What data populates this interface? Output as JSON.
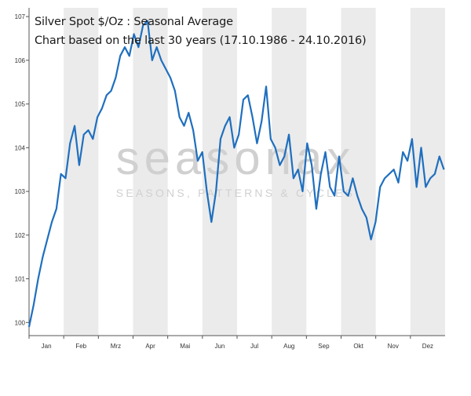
{
  "colors": {
    "line": "#1f6fbf",
    "band": "#ebebeb",
    "axis": "#555555",
    "watermark": "#d0d0d0"
  },
  "watermark": {
    "brand": "seasonax",
    "tagline": "SEASONS, PATTERNS & CYCLES"
  },
  "chart_data": {
    "type": "line",
    "title": "Silver Spot  $/Oz : Seasonal Average",
    "subtitle": "Chart based on the last 30 years (17.10.1986 - 24.10.2016)",
    "xlabel": "",
    "ylabel": "",
    "ylim": [
      99.7,
      107.2
    ],
    "yticks": [
      100,
      101,
      102,
      103,
      104,
      105,
      106,
      107
    ],
    "months": [
      "Jan",
      "Feb",
      "Mrz",
      "Apr",
      "Mai",
      "Jun",
      "Jul",
      "Aug",
      "Sep",
      "Okt",
      "Nov",
      "Dez"
    ],
    "grid": false,
    "shaded_bands": "alternate months",
    "legend": "none",
    "series": [
      {
        "x": [
          "01-01",
          "01-05",
          "01-09",
          "01-13",
          "01-17",
          "01-21",
          "01-25",
          "01-29",
          "02-02",
          "02-06",
          "02-10",
          "02-14",
          "02-18",
          "02-22",
          "02-26",
          "03-02",
          "03-06",
          "03-10",
          "03-14",
          "03-18",
          "03-22",
          "03-26",
          "03-30",
          "04-03",
          "04-07",
          "04-11",
          "04-15",
          "04-19",
          "04-23",
          "04-27",
          "05-01",
          "05-05",
          "05-09",
          "05-13",
          "05-17",
          "05-21",
          "05-25",
          "05-29",
          "06-02",
          "06-06",
          "06-10",
          "06-14",
          "06-18",
          "06-22",
          "06-26",
          "06-30",
          "07-04",
          "07-08",
          "07-12",
          "07-16",
          "07-20",
          "07-24",
          "07-28",
          "08-01",
          "08-05",
          "08-09",
          "08-13",
          "08-17",
          "08-21",
          "08-25",
          "08-29",
          "09-02",
          "09-06",
          "09-10",
          "09-14",
          "09-18",
          "09-22",
          "09-26",
          "09-30",
          "10-04",
          "10-08",
          "10-12",
          "10-16",
          "10-20",
          "10-24",
          "10-28",
          "11-01",
          "11-05",
          "11-09",
          "11-13",
          "11-17",
          "11-21",
          "11-25",
          "11-29",
          "12-03",
          "12-07",
          "12-11",
          "12-15",
          "12-19",
          "12-23",
          "12-27",
          "12-31"
        ],
        "values": [
          99.9,
          100.4,
          101.0,
          101.5,
          101.9,
          102.3,
          102.6,
          103.4,
          103.3,
          104.1,
          104.5,
          103.6,
          104.3,
          104.4,
          104.2,
          104.7,
          104.9,
          105.2,
          105.3,
          105.6,
          106.1,
          106.3,
          106.1,
          106.6,
          106.3,
          106.8,
          106.9,
          106.0,
          106.3,
          106.0,
          105.8,
          105.6,
          105.3,
          104.7,
          104.5,
          104.8,
          104.4,
          103.7,
          103.9,
          103.0,
          102.3,
          103.0,
          104.2,
          104.5,
          104.7,
          104.0,
          104.3,
          105.1,
          105.2,
          104.7,
          104.1,
          104.6,
          105.4,
          104.2,
          104.0,
          103.6,
          103.8,
          104.3,
          103.3,
          103.5,
          103.0,
          104.1,
          103.6,
          102.6,
          103.4,
          103.9,
          103.1,
          102.9,
          103.8,
          103.0,
          102.9,
          103.3,
          102.9,
          102.6,
          102.4,
          101.9,
          102.3,
          103.1,
          103.3,
          103.4,
          103.5,
          103.2,
          103.9,
          103.7,
          104.2,
          103.1,
          104.0,
          103.1,
          103.3,
          103.4,
          103.8,
          103.5
        ]
      }
    ]
  }
}
